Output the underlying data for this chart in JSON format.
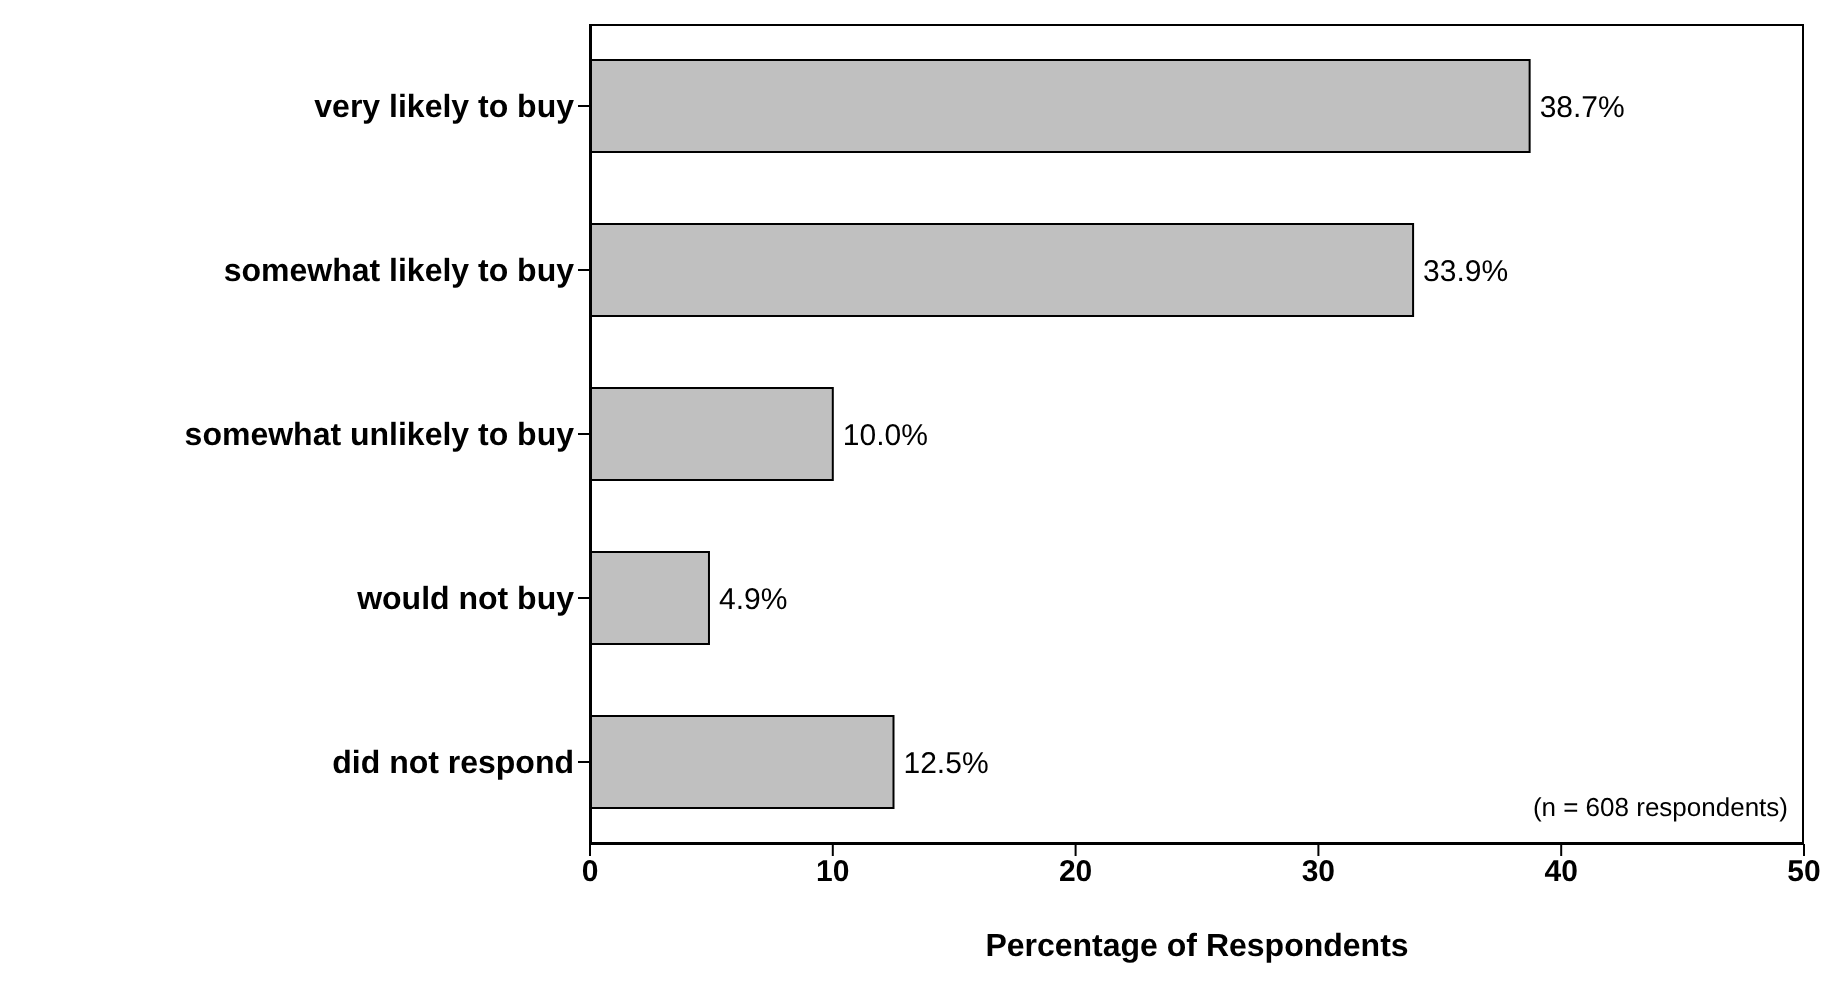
{
  "chart_data": {
    "type": "bar",
    "orientation": "horizontal",
    "xlabel": "Percentage of Respondents",
    "categories": [
      "very likely to buy",
      "somewhat likely to buy",
      "somewhat unlikely to buy",
      "would not buy",
      "did not respond"
    ],
    "values": [
      38.7,
      33.9,
      10.0,
      4.9,
      12.5
    ],
    "value_labels": [
      "38.7%",
      "33.9%",
      "10.0%",
      "4.9%",
      "12.5%"
    ],
    "color": "#c0c0c0",
    "xlim": [
      0,
      50
    ],
    "xticks": [
      0,
      10,
      20,
      30,
      40,
      50
    ],
    "grid": false,
    "annotations": [
      "(n = 608 respondents)"
    ]
  }
}
